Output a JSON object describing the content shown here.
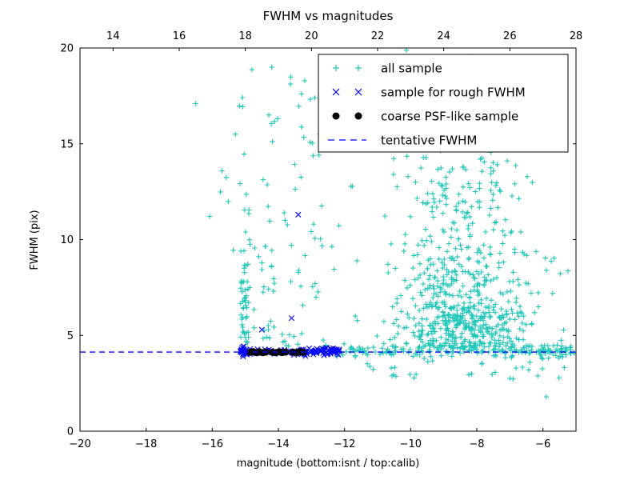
{
  "chart_data": {
    "type": "scatter",
    "title": "FWHM vs magnitudes",
    "xlabel": "magnitude (bottom:isnt / top:calib)",
    "ylabel": "FWHM (pix)",
    "xlim": [
      -20,
      -5
    ],
    "ylim": [
      0,
      20
    ],
    "grid": false,
    "legend_position": "upper right",
    "x_ticks_bottom": {
      "values": [
        -20,
        -18,
        -16,
        -14,
        -12,
        -10,
        -8,
        -6
      ],
      "labels": [
        "−20",
        "−18",
        "−16",
        "−14",
        "−12",
        "−10",
        "−8",
        "−6"
      ]
    },
    "x_ticks_top": {
      "values": [
        14,
        16,
        18,
        20,
        22,
        24,
        26,
        28
      ],
      "labels": [
        "14",
        "16",
        "18",
        "20",
        "22",
        "24",
        "26",
        "28"
      ],
      "offset_from_bottom_axis": 33
    },
    "y_ticks": {
      "values": [
        0,
        5,
        10,
        15,
        20
      ],
      "labels": [
        "0",
        "5",
        "10",
        "15",
        "20"
      ]
    },
    "tentative_fwhm": 4.13,
    "colors": {
      "all_sample": "#20c6b8",
      "rough_sample": "#0000ff",
      "psf_sample": "#000000",
      "tentative_line": "#0000ff",
      "axis": "#000000"
    },
    "seed": 20240607,
    "series": [
      {
        "name": "all sample",
        "marker": "plus",
        "color": "#20c6b8",
        "clusters": [
          {
            "n": 40,
            "x": {
              "type": "uniform",
              "min": -15.15,
              "max": -14.85
            },
            "y": {
              "type": "uniform",
              "min": 4.3,
              "max": 8.0
            }
          },
          {
            "n": 15,
            "x": {
              "type": "uniform",
              "min": -15.15,
              "max": -14.85
            },
            "y": {
              "type": "uniform",
              "min": 8.0,
              "max": 12.5
            }
          },
          {
            "n": 6,
            "x": {
              "type": "uniform",
              "min": -15.2,
              "max": -14.8
            },
            "y": {
              "type": "uniform",
              "min": 12.5,
              "max": 19.3
            }
          },
          {
            "n": 25,
            "x": {
              "type": "uniform",
              "min": -14.75,
              "max": -14.05
            },
            "y": {
              "type": "uniform",
              "min": 4.6,
              "max": 10.0
            }
          },
          {
            "n": 8,
            "x": {
              "type": "uniform",
              "min": -14.7,
              "max": -14.0
            },
            "y": {
              "type": "uniform",
              "min": 10.0,
              "max": 19.5
            }
          },
          {
            "n": 50,
            "x": {
              "type": "uniform",
              "min": -14.2,
              "max": -11.6
            },
            "y": {
              "type": "uniform",
              "min": 5.0,
              "max": 19.5
            }
          },
          {
            "n": 12,
            "x": {
              "type": "uniform",
              "min": -13.9,
              "max": -12.5
            },
            "y": {
              "type": "uniform",
              "min": 4.3,
              "max": 5.2
            }
          },
          {
            "n": 170,
            "x": {
              "type": "uniform",
              "min": -12.4,
              "max": -5.15
            },
            "y": {
              "type": "gauss",
              "mu": 4.18,
              "sigma": 0.18,
              "min": 3.75,
              "max": 4.65
            }
          },
          {
            "n": 330,
            "x": {
              "type": "gauss",
              "mu": -8.3,
              "sigma": 0.95,
              "min": -11.2,
              "max": -5.9
            },
            "y": {
              "type": "uniform",
              "min": 4.3,
              "max": 6.5
            }
          },
          {
            "n": 180,
            "x": {
              "type": "gauss",
              "mu": -8.4,
              "sigma": 1.0,
              "min": -11.3,
              "max": -5.8
            },
            "y": {
              "type": "uniform",
              "min": 6.5,
              "max": 9.5
            }
          },
          {
            "n": 110,
            "x": {
              "type": "gauss",
              "mu": -8.6,
              "sigma": 1.0,
              "min": -11.5,
              "max": -6.0
            },
            "y": {
              "type": "uniform",
              "min": 9.5,
              "max": 13.0
            }
          },
          {
            "n": 55,
            "x": {
              "type": "gauss",
              "mu": -8.8,
              "sigma": 1.1,
              "min": -11.5,
              "max": -6.2
            },
            "y": {
              "type": "uniform",
              "min": 13.0,
              "max": 16.0
            }
          },
          {
            "n": 25,
            "x": {
              "type": "gauss",
              "mu": -9.0,
              "sigma": 1.0,
              "min": -11.3,
              "max": -6.5
            },
            "y": {
              "type": "uniform",
              "min": 16.0,
              "max": 19.9
            }
          },
          {
            "n": 25,
            "x": {
              "type": "uniform",
              "min": -6.6,
              "max": -5.05
            },
            "y": {
              "type": "gauss",
              "mu": 4.2,
              "sigma": 0.2,
              "min": 3.8,
              "max": 4.6
            }
          },
          {
            "n": 18,
            "x": {
              "type": "uniform",
              "min": -6.9,
              "max": -5.1
            },
            "y": {
              "type": "uniform",
              "min": 4.7,
              "max": 9.5
            }
          },
          {
            "n": 30,
            "x": {
              "type": "uniform",
              "min": -11.5,
              "max": -5.2
            },
            "y": {
              "type": "uniform",
              "min": 2.7,
              "max": 3.8
            }
          },
          {
            "n": 6,
            "x": {
              "type": "uniform",
              "min": -16.2,
              "max": -15.25
            },
            "y": {
              "type": "uniform",
              "min": 9.0,
              "max": 15.5
            }
          }
        ],
        "points": [
          [
            -16.5,
            17.1
          ],
          [
            -14.2,
            19.0
          ],
          [
            -12.5,
            18.9
          ],
          [
            -5.9,
            1.8
          ],
          [
            -15.3,
            15.5
          ],
          [
            -13.3,
            17.6
          ],
          [
            -12.9,
            17.4
          ]
        ]
      },
      {
        "name": "sample for rough FWHM",
        "marker": "x",
        "color": "#0000ff",
        "clusters": [
          {
            "n": 25,
            "x": {
              "type": "uniform",
              "min": -15.15,
              "max": -14.85
            },
            "y": {
              "type": "gauss",
              "mu": 4.15,
              "sigma": 0.12,
              "min": 3.85,
              "max": 4.5
            }
          },
          {
            "n": 30,
            "x": {
              "type": "uniform",
              "min": -14.85,
              "max": -13.35
            },
            "y": {
              "type": "gauss",
              "mu": 4.15,
              "sigma": 0.08,
              "min": 3.95,
              "max": 4.35
            }
          },
          {
            "n": 75,
            "x": {
              "type": "uniform",
              "min": -13.35,
              "max": -12.15
            },
            "y": {
              "type": "gauss",
              "mu": 4.15,
              "sigma": 0.1,
              "min": 3.9,
              "max": 4.45
            }
          }
        ],
        "points": [
          [
            -14.5,
            5.3
          ],
          [
            -13.6,
            5.9
          ],
          [
            -13.4,
            11.3
          ]
        ]
      },
      {
        "name": "coarse PSF-like sample",
        "marker": "dot",
        "color": "#000000",
        "clusters": [],
        "points": [
          [
            -14.85,
            4.12
          ],
          [
            -14.76,
            4.15
          ],
          [
            -14.66,
            4.1
          ],
          [
            -14.57,
            4.14
          ],
          [
            -14.47,
            4.1
          ],
          [
            -14.38,
            4.13
          ],
          [
            -14.18,
            4.12
          ],
          [
            -14.08,
            4.1
          ],
          [
            -13.98,
            4.14
          ],
          [
            -13.88,
            4.11
          ],
          [
            -13.78,
            4.13
          ],
          [
            -13.55,
            4.12
          ],
          [
            -13.45,
            4.1
          ],
          [
            -13.35,
            4.14
          ],
          [
            -13.25,
            4.12
          ]
        ]
      },
      {
        "name": "tentative FWHM",
        "marker": "dash",
        "color": "#0000ff",
        "y": 4.13
      }
    ]
  }
}
